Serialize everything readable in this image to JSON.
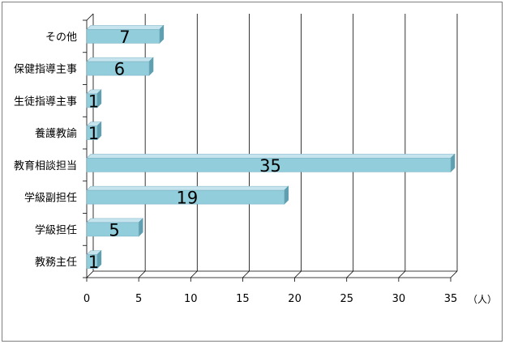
{
  "chart_data": {
    "type": "bar",
    "orientation": "horizontal",
    "categories": [
      "教務主任",
      "学級担任",
      "学級副担任",
      "教育相談担当",
      "養護教諭",
      "生徒指導主事",
      "保健指導主事",
      "その他"
    ],
    "values": [
      1,
      5,
      19,
      35,
      1,
      1,
      6,
      7
    ],
    "xlim": [
      0,
      35
    ],
    "xticks": [
      0,
      5,
      10,
      15,
      20,
      25,
      30,
      35
    ],
    "unit_label": "（人）",
    "grid": "vertical",
    "bar_color": "#92cddc",
    "legend": "none"
  }
}
